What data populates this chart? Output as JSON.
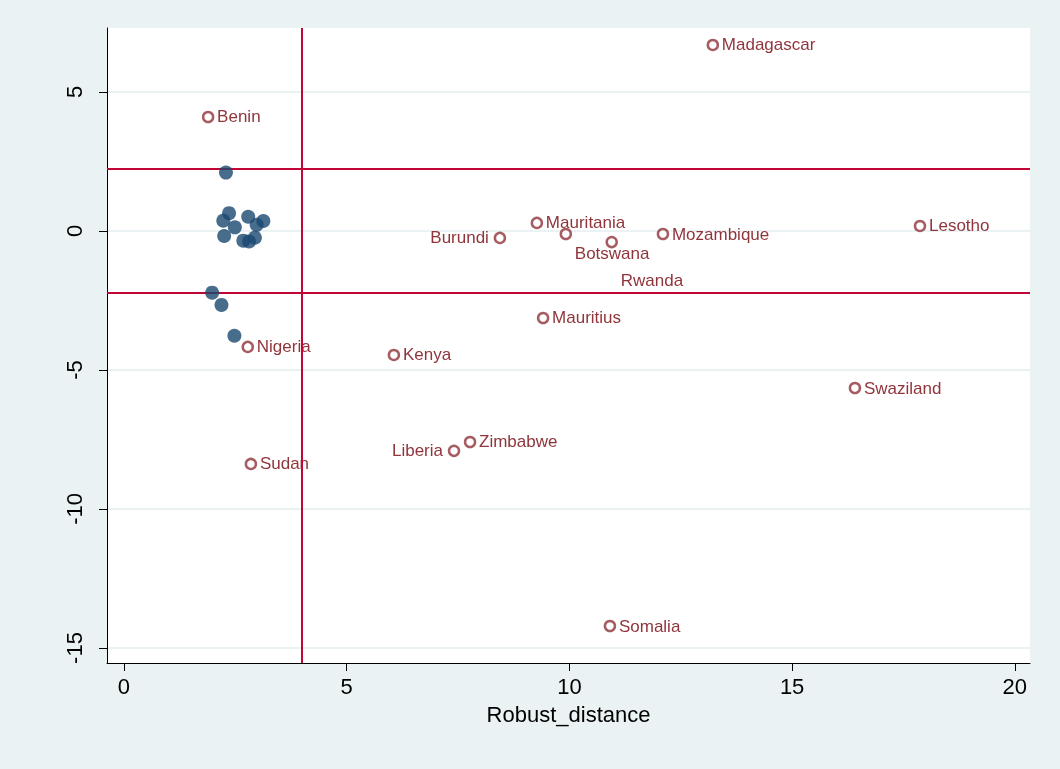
{
  "chart_data": {
    "type": "scatter",
    "xlabel": "Robust_distance",
    "xlim": [
      -0.38,
      20.34
    ],
    "ylim": [
      -15.54,
      7.3
    ],
    "xticks": [
      0,
      5,
      10,
      15,
      20
    ],
    "yticks": [
      -15,
      -10,
      -5,
      0,
      5
    ],
    "grid": "y",
    "marker": "circle",
    "series": [
      {
        "color": "#1a476f",
        "x": [
          2.29,
          2.36,
          2.23,
          2.49,
          2.25,
          2.79,
          3.13,
          2.98,
          2.68,
          2.81,
          2.94,
          1.98,
          2.19,
          2.48
        ],
        "values": [
          2.1,
          0.64,
          0.37,
          0.13,
          -0.18,
          0.51,
          0.36,
          0.22,
          -0.35,
          -0.38,
          -0.24,
          -2.22,
          -2.66,
          -3.77
        ]
      },
      {
        "color": "#90353b",
        "x": [
          13.22,
          1.89,
          9.27,
          9.92,
          8.44,
          10.95,
          12.1,
          17.87,
          9.41,
          2.78,
          6.06,
          16.41,
          7.77,
          7.41,
          2.85,
          10.91
        ],
        "values": [
          6.69,
          4.1,
          0.29,
          -0.11,
          -0.25,
          -0.4,
          -0.11,
          0.18,
          -3.13,
          -4.17,
          -4.46,
          -5.65,
          -7.59,
          -7.91,
          -8.38,
          -14.21
        ]
      }
    ],
    "ref_lines": [
      {
        "axis": "x",
        "value": 4,
        "color": "#c10534"
      },
      {
        "axis": "y",
        "value": 2.24,
        "color": "#c10534"
      },
      {
        "axis": "y",
        "value": -2.24,
        "color": "#c10534"
      }
    ],
    "annotations": [
      {
        "text": "Madagascar",
        "x": 13.22,
        "y": 6.69
      },
      {
        "text": "Benin",
        "x": 1.89,
        "y": 4.1
      },
      {
        "text": "Mauritania",
        "x": 9.27,
        "y": 0.29
      },
      {
        "text": "Botswana",
        "x": 9.92,
        "y": -0.11
      },
      {
        "text": "Burundi",
        "x": 8.44,
        "y": -0.25
      },
      {
        "text": "Rwanda",
        "x": 10.95,
        "y": -0.4
      },
      {
        "text": "Mozambique",
        "x": 12.1,
        "y": -0.11
      },
      {
        "text": "Lesotho",
        "x": 17.87,
        "y": 0.18
      },
      {
        "text": "Mauritius",
        "x": 9.41,
        "y": -3.13
      },
      {
        "text": "Nigeria",
        "x": 2.78,
        "y": -4.17
      },
      {
        "text": "Kenya",
        "x": 6.06,
        "y": -4.46
      },
      {
        "text": "Swaziland",
        "x": 16.41,
        "y": -5.65
      },
      {
        "text": "Zimbabwe",
        "x": 7.77,
        "y": -7.59
      },
      {
        "text": "Liberia",
        "x": 7.41,
        "y": -7.91
      },
      {
        "text": "Sudan",
        "x": 2.85,
        "y": -8.38
      },
      {
        "text": "Somalia",
        "x": 10.91,
        "y": -14.21
      }
    ]
  }
}
